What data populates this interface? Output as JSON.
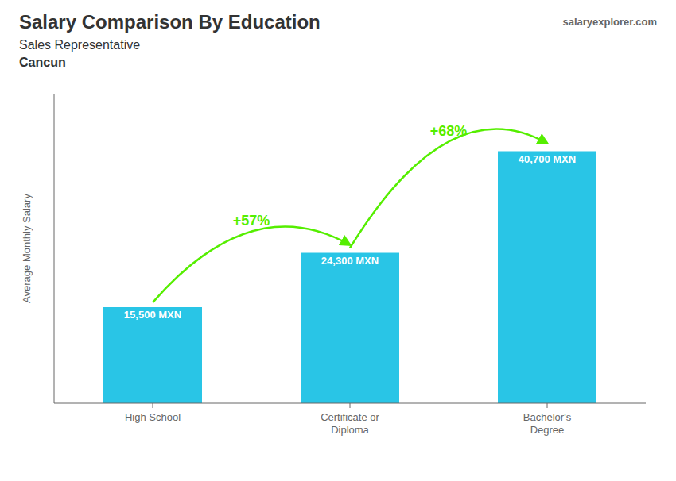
{
  "chart_data": {
    "type": "bar",
    "title": "Salary Comparison By Education",
    "subtitle": "Sales Representative",
    "city": "Cancun",
    "source": "salaryexplorer.com",
    "ylabel": "Average Monthly Salary",
    "categories": [
      "High School",
      "Certificate or\nDiploma",
      "Bachelor's\nDegree"
    ],
    "values": [
      15500,
      24300,
      40700
    ],
    "value_labels": [
      "15,500 MXN",
      "24,300 MXN",
      "40,700 MXN"
    ],
    "data_labels": true,
    "color": "#29C5E6",
    "ylim": [
      0,
      50000
    ],
    "tick_labels": "x",
    "grid": false,
    "annotations": [
      {
        "text": "+57%",
        "color": "#55EE00"
      },
      {
        "text": "+68%",
        "color": "#55EE00"
      }
    ]
  }
}
